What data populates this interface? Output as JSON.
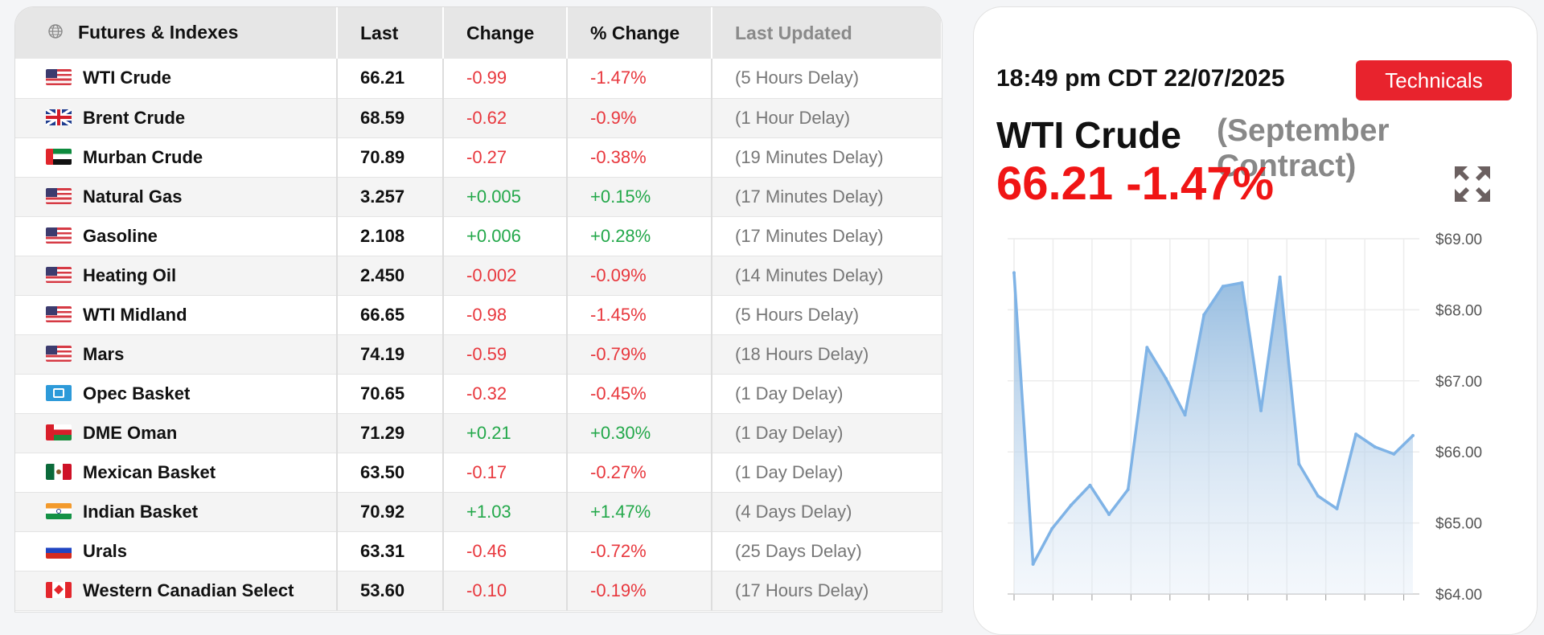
{
  "table": {
    "headers": {
      "name": "Futures & Indexes",
      "last": "Last",
      "change": "Change",
      "pct_change": "% Change",
      "updated": "Last Updated"
    },
    "rows": [
      {
        "flag": "us",
        "name": "WTI Crude",
        "last": "66.21",
        "change": "-0.99",
        "pct": "-1.47%",
        "updated": "(5 Hours Delay)",
        "dir": "neg"
      },
      {
        "flag": "gb",
        "name": "Brent Crude",
        "last": "68.59",
        "change": "-0.62",
        "pct": "-0.9%",
        "updated": "(1 Hour Delay)",
        "dir": "neg"
      },
      {
        "flag": "ae",
        "name": "Murban Crude",
        "last": "70.89",
        "change": "-0.27",
        "pct": "-0.38%",
        "updated": "(19 Minutes Delay)",
        "dir": "neg"
      },
      {
        "flag": "us",
        "name": "Natural Gas",
        "last": "3.257",
        "change": "+0.005",
        "pct": "+0.15%",
        "updated": "(17 Minutes Delay)",
        "dir": "pos"
      },
      {
        "flag": "us",
        "name": "Gasoline",
        "last": "2.108",
        "change": "+0.006",
        "pct": "+0.28%",
        "updated": "(17 Minutes Delay)",
        "dir": "pos"
      },
      {
        "flag": "us",
        "name": "Heating Oil",
        "last": "2.450",
        "change": "-0.002",
        "pct": "-0.09%",
        "updated": "(14 Minutes Delay)",
        "dir": "neg"
      },
      {
        "flag": "us",
        "name": "WTI Midland",
        "last": "66.65",
        "change": "-0.98",
        "pct": "-1.45%",
        "updated": "(5 Hours Delay)",
        "dir": "neg"
      },
      {
        "flag": "us",
        "name": "Mars",
        "last": "74.19",
        "change": "-0.59",
        "pct": "-0.79%",
        "updated": "(18 Hours Delay)",
        "dir": "neg"
      },
      {
        "flag": "opec",
        "name": "Opec Basket",
        "last": "70.65",
        "change": "-0.32",
        "pct": "-0.45%",
        "updated": "(1 Day Delay)",
        "dir": "neg"
      },
      {
        "flag": "om",
        "name": "DME Oman",
        "last": "71.29",
        "change": "+0.21",
        "pct": "+0.30%",
        "updated": "(1 Day Delay)",
        "dir": "pos"
      },
      {
        "flag": "mx",
        "name": "Mexican Basket",
        "last": "63.50",
        "change": "-0.17",
        "pct": "-0.27%",
        "updated": "(1 Day Delay)",
        "dir": "neg"
      },
      {
        "flag": "in",
        "name": "Indian Basket",
        "last": "70.92",
        "change": "+1.03",
        "pct": "+1.47%",
        "updated": "(4 Days Delay)",
        "dir": "pos"
      },
      {
        "flag": "ru",
        "name": "Urals",
        "last": "63.31",
        "change": "-0.46",
        "pct": "-0.72%",
        "updated": "(25 Days Delay)",
        "dir": "neg"
      },
      {
        "flag": "ca",
        "name": "Western Canadian Select",
        "last": "53.60",
        "change": "-0.10",
        "pct": "-0.19%",
        "updated": "(17 Hours Delay)",
        "dir": "neg"
      }
    ]
  },
  "detail": {
    "timestamp": "18:49 pm CDT 22/07/2025",
    "technicals_label": "Technicals",
    "commodity": "WTI Crude",
    "contract": "(September Contract)",
    "price_line": "66.21 -1.47%",
    "colors": {
      "negative": "#f01515",
      "positive": "#23a84a",
      "button": "#e8232d",
      "line": "#7fb3e6"
    }
  },
  "chart_data": {
    "type": "area",
    "y_tick_labels": [
      "$69.00",
      "$68.00",
      "$67.00",
      "$66.00",
      "$65.00",
      "$64.00"
    ],
    "ylim": [
      64,
      69
    ],
    "grid": true,
    "y_axis_position": "right",
    "values": [
      68.52,
      64.42,
      64.92,
      65.25,
      65.53,
      65.12,
      65.47,
      67.47,
      67.03,
      66.52,
      67.93,
      68.33,
      68.38,
      66.58,
      68.46,
      65.83,
      65.38,
      65.2,
      66.25,
      66.07,
      65.97,
      66.23
    ],
    "x_tick_count": 11
  }
}
